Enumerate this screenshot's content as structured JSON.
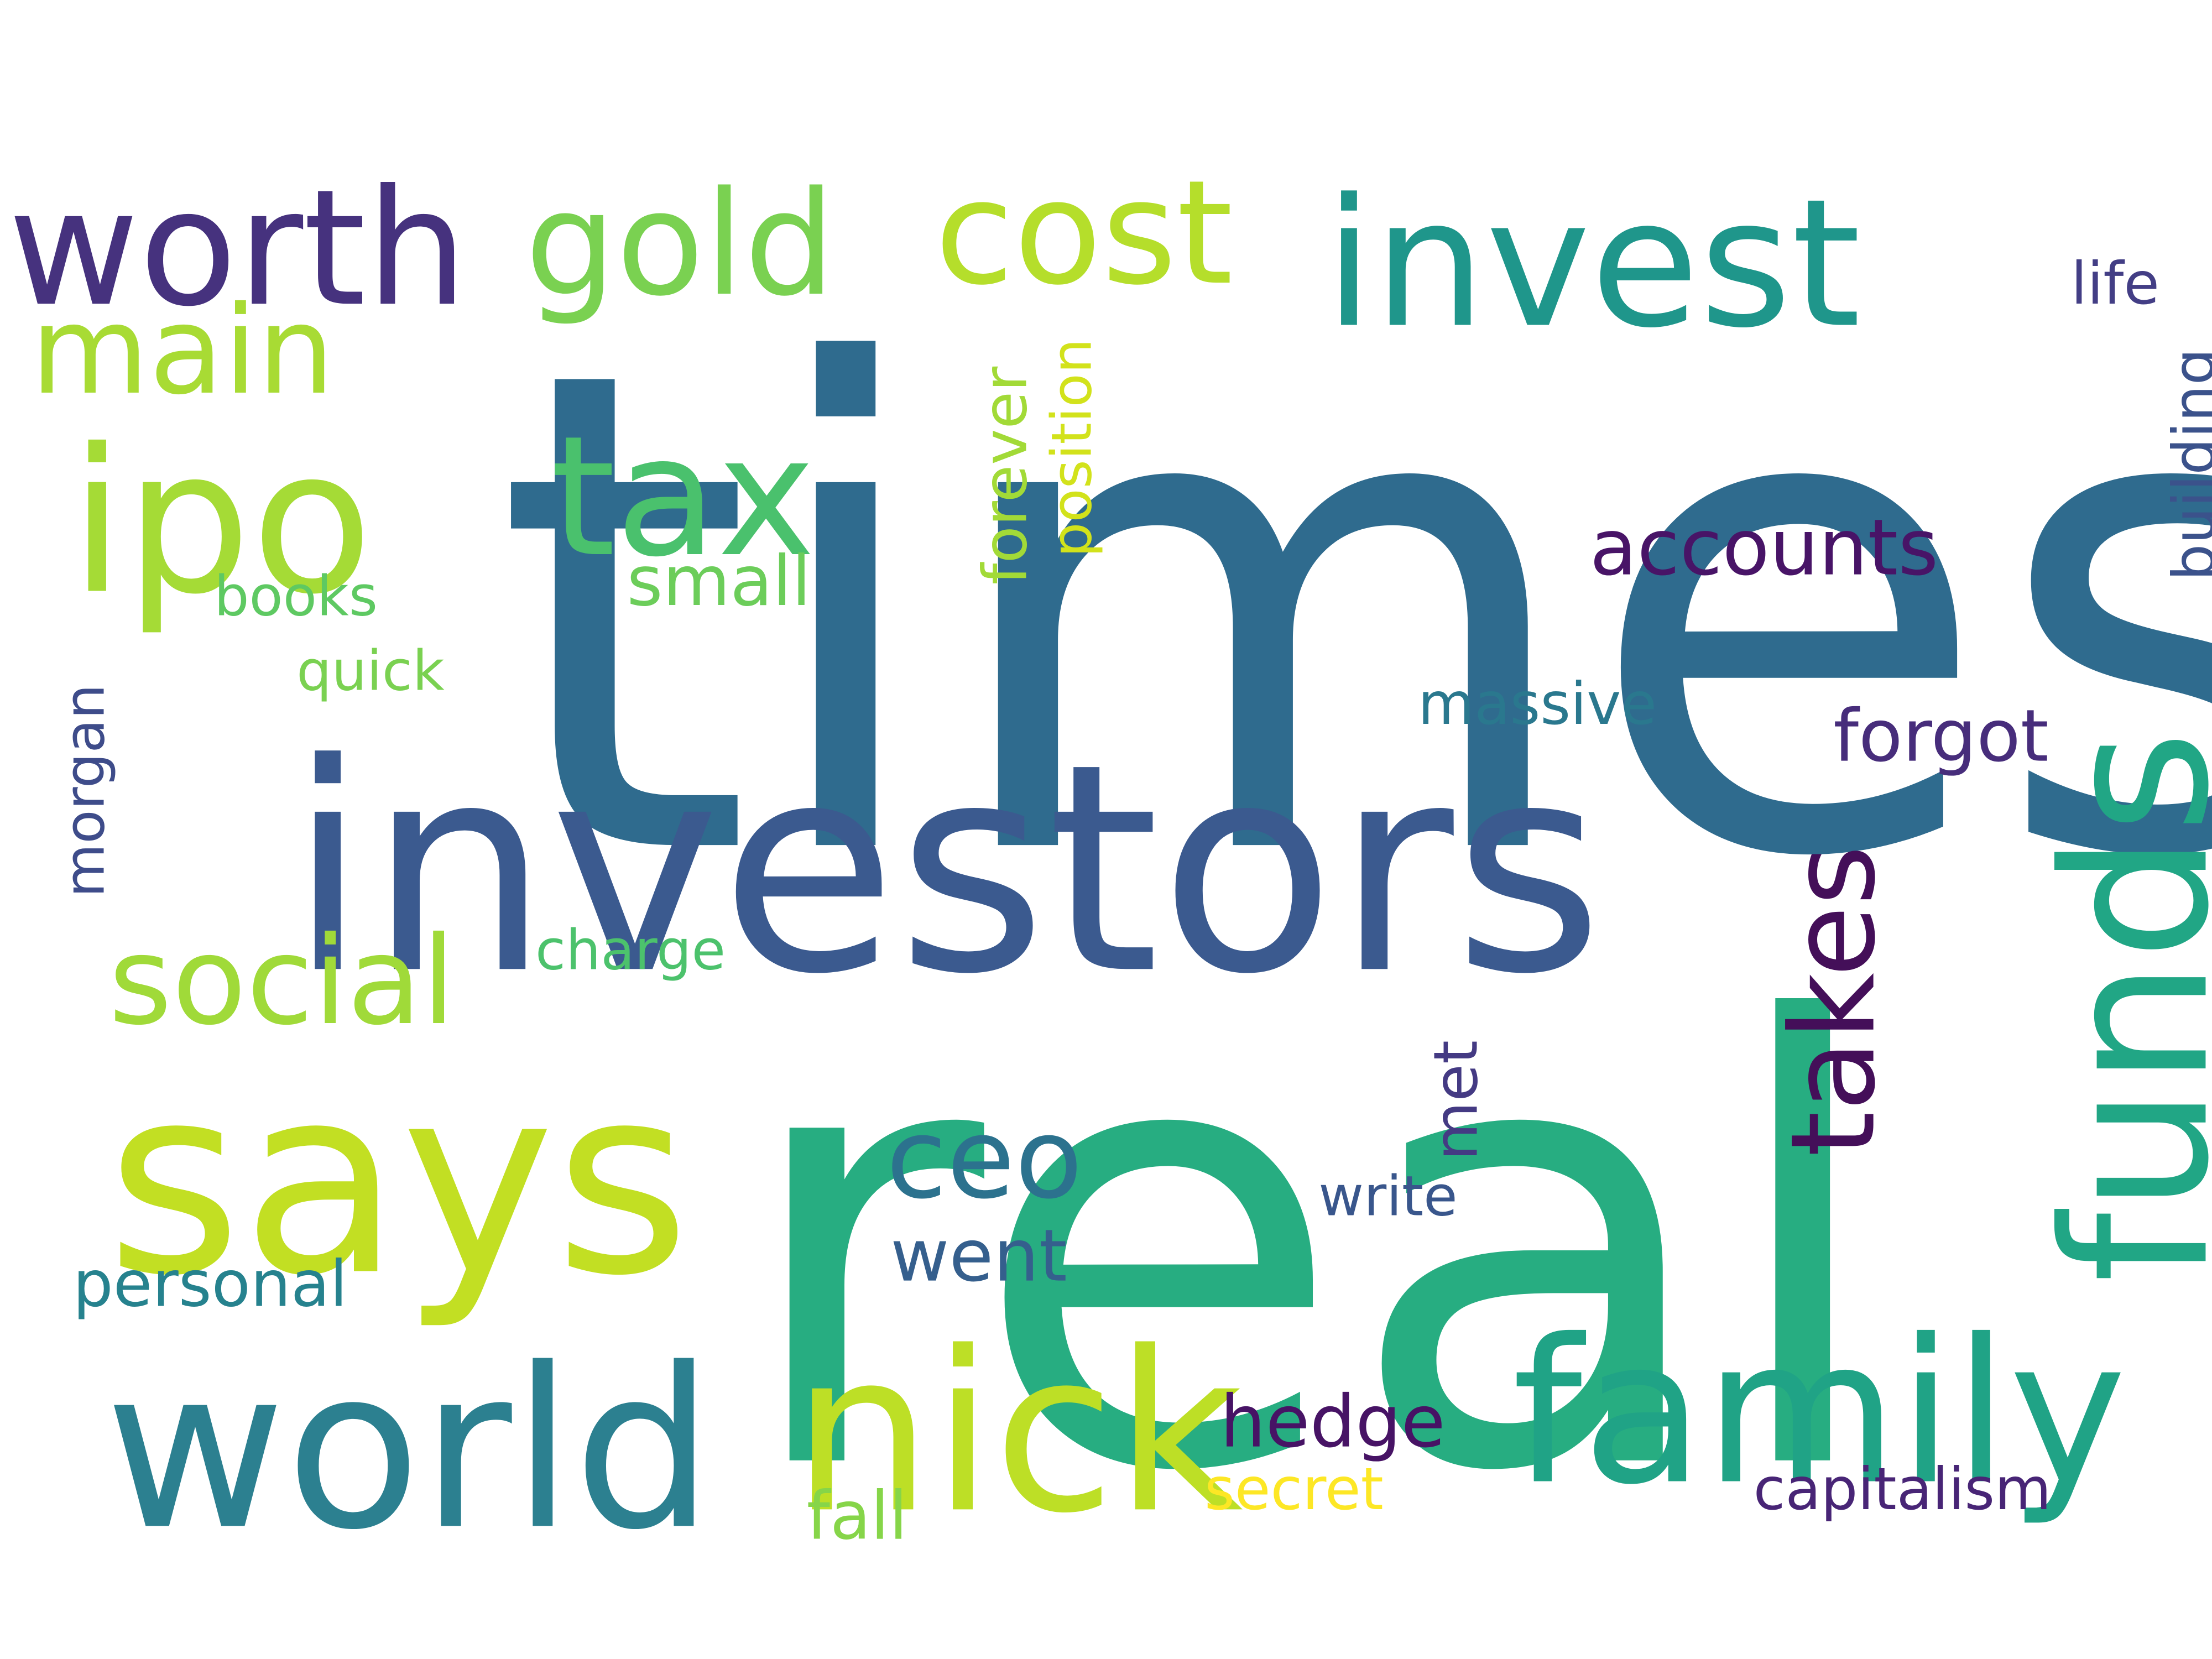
{
  "words": [
    {
      "id": "times",
      "text": "times",
      "color": "#2f6b8e"
    },
    {
      "id": "real",
      "text": "real",
      "color": "#27ad81"
    },
    {
      "id": "investors",
      "text": "investors",
      "color": "#3b5a8f"
    },
    {
      "id": "says",
      "text": "says",
      "color": "#c2df23"
    },
    {
      "id": "world",
      "text": "world",
      "color": "#2c8090"
    },
    {
      "id": "nick",
      "text": "nick",
      "color": "#bddf26"
    },
    {
      "id": "family",
      "text": "family",
      "color": "#20a386"
    },
    {
      "id": "funds",
      "text": "funds",
      "color": "#21a685"
    },
    {
      "id": "invest",
      "text": "invest",
      "color": "#1f968b"
    },
    {
      "id": "worth",
      "text": "worth",
      "color": "#46327e"
    },
    {
      "id": "gold",
      "text": "gold",
      "color": "#7ad151"
    },
    {
      "id": "cost",
      "text": "cost",
      "color": "#b5de2b"
    },
    {
      "id": "ipo",
      "text": "ipo",
      "color": "#a5db36"
    },
    {
      "id": "tax",
      "text": "tax",
      "color": "#4ac16d"
    },
    {
      "id": "main",
      "text": "main",
      "color": "#a8db34"
    },
    {
      "id": "social",
      "text": "social",
      "color": "#a0da39"
    },
    {
      "id": "takes",
      "text": "takes",
      "color": "#440f59"
    },
    {
      "id": "ceo",
      "text": "ceo",
      "color": "#2c728e"
    },
    {
      "id": "accounts",
      "text": "accounts",
      "color": "#481467"
    },
    {
      "id": "forgot",
      "text": "forgot",
      "color": "#472d7b"
    },
    {
      "id": "hedge",
      "text": "hedge",
      "color": "#471365"
    },
    {
      "id": "went",
      "text": "went",
      "color": "#355f8d"
    },
    {
      "id": "personal",
      "text": "personal",
      "color": "#26828e"
    },
    {
      "id": "capitalism",
      "text": "capitalism",
      "color": "#482576"
    },
    {
      "id": "secret",
      "text": "secret",
      "color": "#fde725"
    },
    {
      "id": "fall",
      "text": "fall",
      "color": "#86d549"
    },
    {
      "id": "write",
      "text": "write",
      "color": "#39568c"
    },
    {
      "id": "met",
      "text": "met",
      "color": "#443a83"
    },
    {
      "id": "massive",
      "text": "massive",
      "color": "#2a788e"
    },
    {
      "id": "charge",
      "text": "charge",
      "color": "#4cc26c"
    },
    {
      "id": "morgan",
      "text": "morgan",
      "color": "#3e4c8a"
    },
    {
      "id": "quick",
      "text": "quick",
      "color": "#7ad151"
    },
    {
      "id": "books",
      "text": "books",
      "color": "#5ec962"
    },
    {
      "id": "small",
      "text": "small",
      "color": "#6ccd5a"
    },
    {
      "id": "forever",
      "text": "forever",
      "color": "#a2da37"
    },
    {
      "id": "position",
      "text": "position",
      "color": "#d2e21b"
    },
    {
      "id": "life",
      "text": "life",
      "color": "#433e85"
    },
    {
      "id": "building",
      "text": "building",
      "color": "#3b528b"
    }
  ]
}
